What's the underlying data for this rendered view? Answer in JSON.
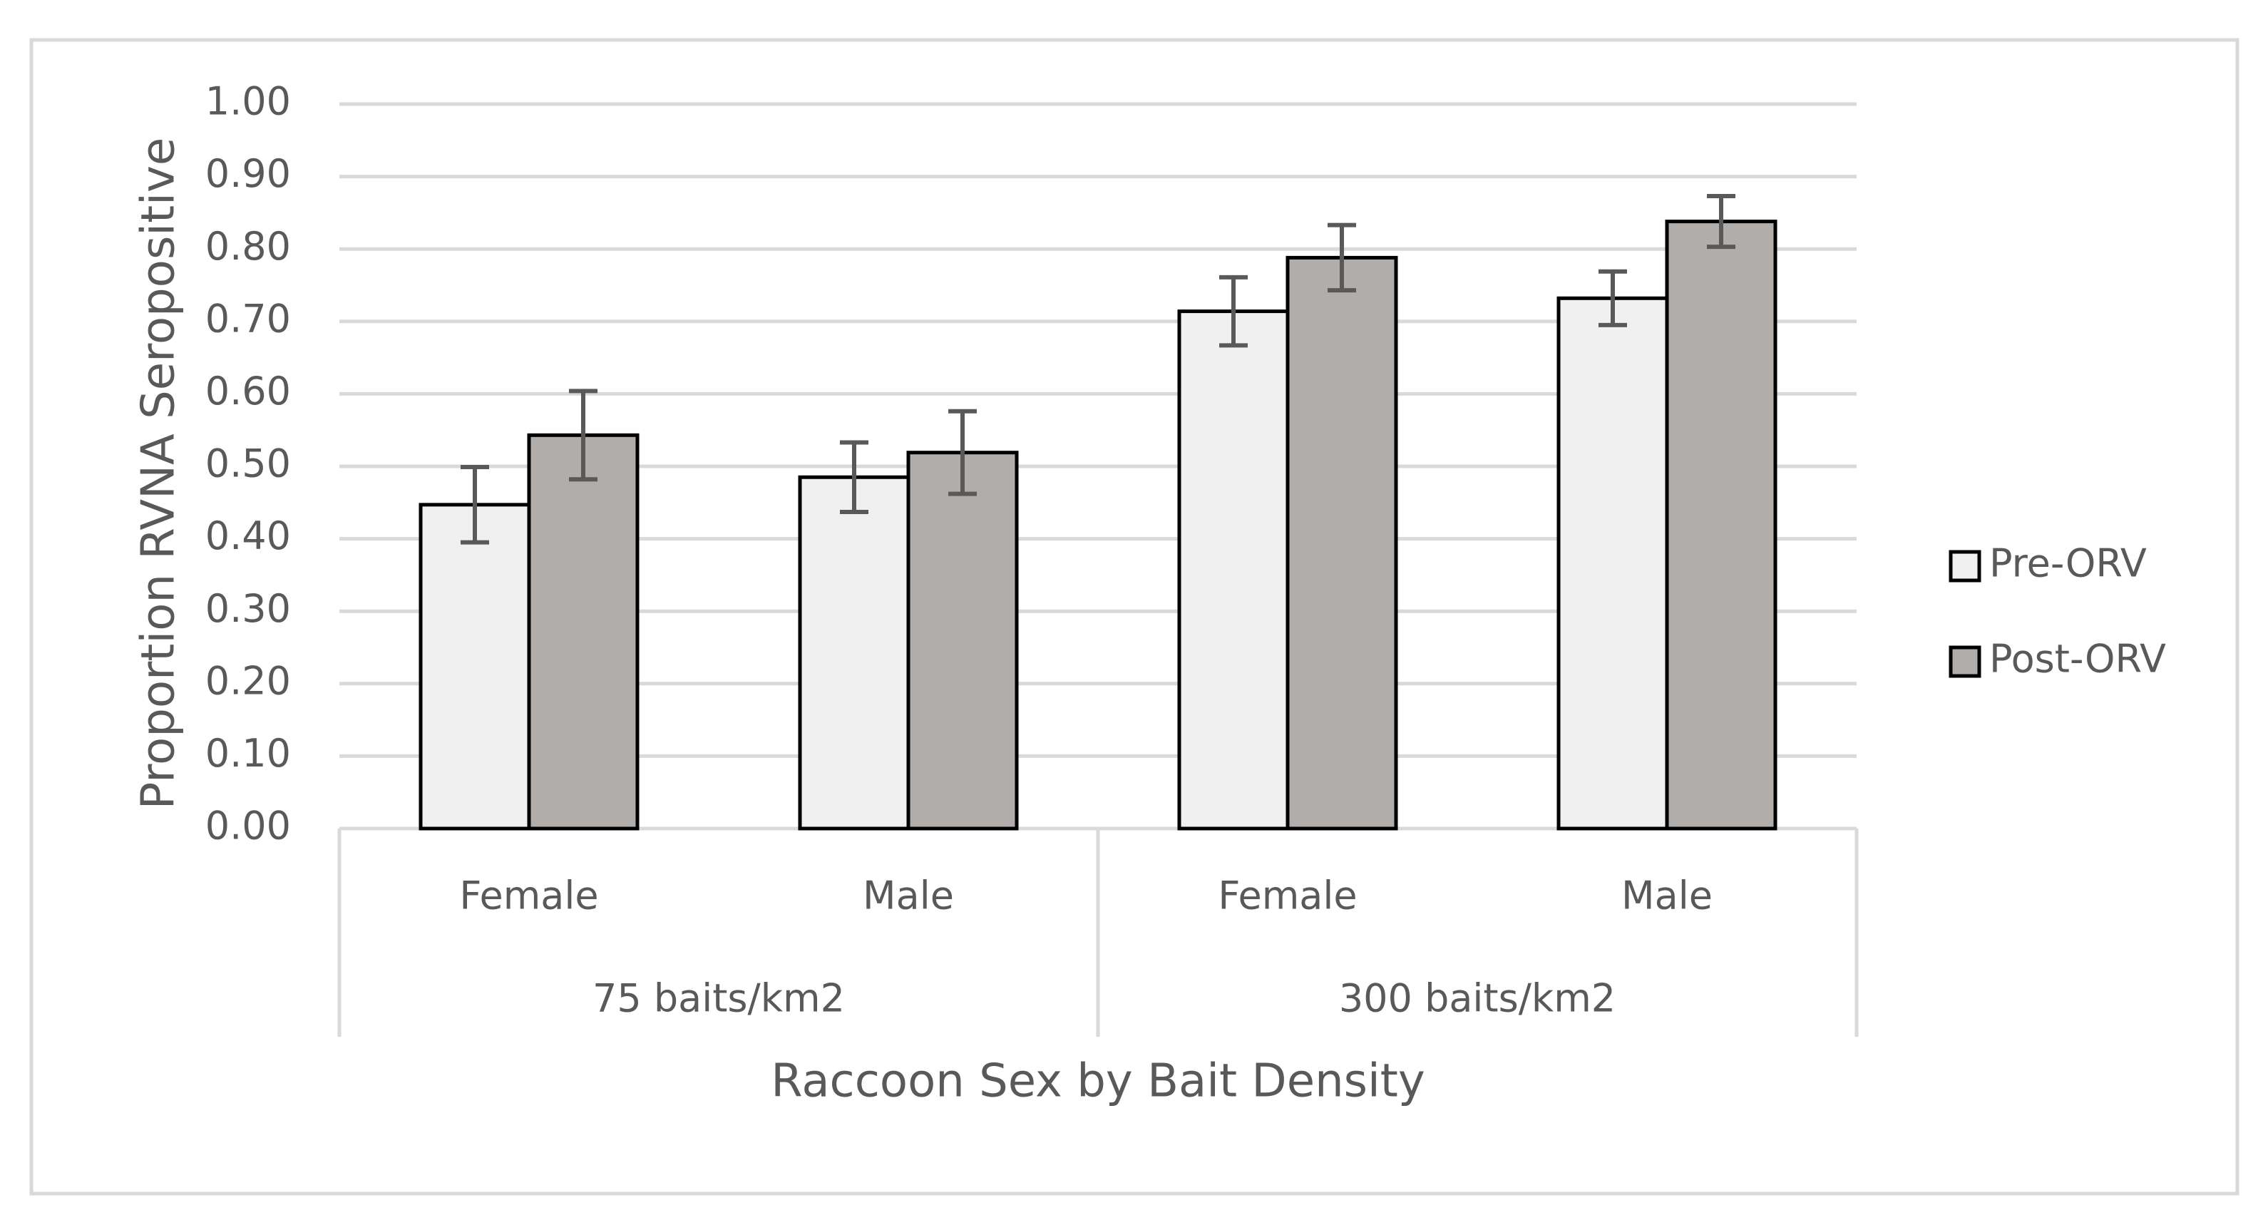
{
  "chart_data": {
    "type": "bar",
    "title": "",
    "xlabel": "Raccoon Sex by Bait Density",
    "ylabel": "Proportion RVNA Seropositive",
    "ylim": [
      0,
      1
    ],
    "ytick_step": 0.1,
    "ytick_labels": [
      "0.00",
      "0.10",
      "0.20",
      "0.30",
      "0.40",
      "0.50",
      "0.60",
      "0.70",
      "0.80",
      "0.90",
      "1.00"
    ],
    "grid": true,
    "legend_position": "right",
    "groups": [
      {
        "label": "75 baits/km2",
        "categories": [
          "Female",
          "Male"
        ]
      },
      {
        "label": "300 baits/km2",
        "categories": [
          "Female",
          "Male"
        ]
      }
    ],
    "series": [
      {
        "name": "Pre-ORV",
        "color": "#f0f0f0",
        "values": [
          0.447,
          0.485,
          0.714,
          0.732
        ],
        "error": [
          0.052,
          0.048,
          0.047,
          0.037
        ]
      },
      {
        "name": "Post-ORV",
        "color": "#b0adab",
        "values": [
          0.543,
          0.519,
          0.788,
          0.838
        ],
        "error": [
          0.061,
          0.057,
          0.045,
          0.035
        ]
      }
    ]
  },
  "colors": {
    "gridline": "#d9d9d9",
    "frame": "#d9d9d9",
    "bar_outline": "#000000",
    "error_bar": "#595959",
    "text": "#595959"
  }
}
